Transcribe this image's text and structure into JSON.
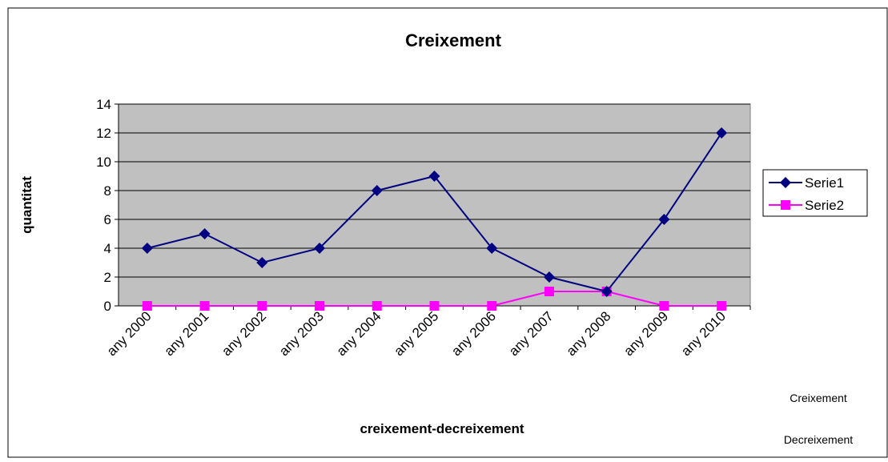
{
  "chart_data": {
    "type": "line",
    "title": "Creixement",
    "x_label": "creixement-decreixement",
    "y_label": "quantitat",
    "categories": [
      "any 2000",
      "any 2001",
      "any 2002",
      "any 2003",
      "any 2004",
      "any 2005",
      "any 2006",
      "any 2007",
      "any 2008",
      "any 2009",
      "any 2010"
    ],
    "series": [
      {
        "name": "Serie1",
        "color": "#000080",
        "marker": "diamond",
        "values": [
          4,
          5,
          3,
          4,
          8,
          9,
          4,
          2,
          1,
          6,
          12
        ]
      },
      {
        "name": "Serie2",
        "color": "#ff00ff",
        "marker": "square",
        "values": [
          0,
          0,
          0,
          0,
          0,
          0,
          0,
          1,
          1,
          0,
          0
        ]
      }
    ],
    "ylim": [
      0,
      14
    ],
    "yticks": [
      0,
      2,
      4,
      6,
      8,
      10,
      12,
      14
    ],
    "grid": true,
    "legend": "right",
    "annotations": [
      "Creixement",
      "Decreixement"
    ]
  }
}
